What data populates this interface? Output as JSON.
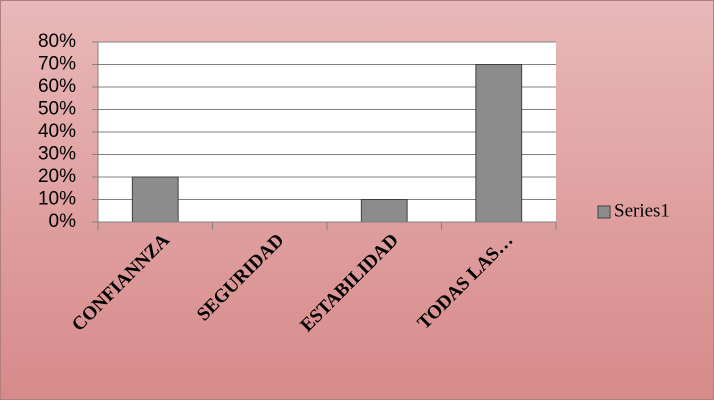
{
  "chart_data": {
    "type": "bar",
    "categories": [
      "CONFIANNZA",
      "SEGURIDAD",
      "ESTABILIDAD",
      "TODAS LAS…"
    ],
    "series": [
      {
        "name": "Series1",
        "color": "#8c8c8c",
        "values": [
          20,
          0,
          10,
          70
        ]
      }
    ],
    "ylim": [
      0,
      80
    ],
    "yticks": [
      {
        "value": 0,
        "label": "0%"
      },
      {
        "value": 10,
        "label": "10%"
      },
      {
        "value": 20,
        "label": "20%"
      },
      {
        "value": 30,
        "label": "30%"
      },
      {
        "value": 40,
        "label": "40%"
      },
      {
        "value": 50,
        "label": "50%"
      },
      {
        "value": 60,
        "label": "60%"
      },
      {
        "value": 70,
        "label": "70%"
      },
      {
        "value": 80,
        "label": "80%"
      }
    ],
    "grid": true,
    "legend": "right"
  }
}
